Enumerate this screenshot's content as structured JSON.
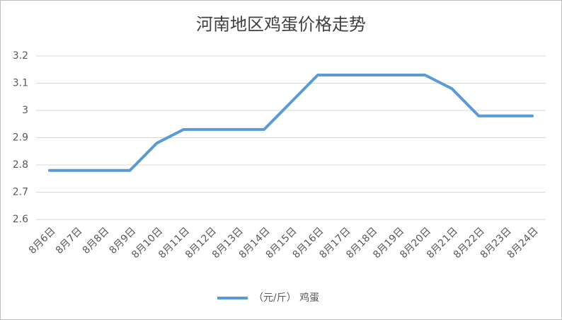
{
  "chart_data": {
    "type": "line",
    "title": "河南地区鸡蛋价格走势",
    "categories": [
      "8月6日",
      "8月7日",
      "8月8日",
      "8月9日",
      "8月10日",
      "8月11日",
      "8月12日",
      "8月13日",
      "8月14日",
      "8月15日",
      "8月16日",
      "8月17日",
      "8月18日",
      "8月19日",
      "8月20日",
      "8月21日",
      "8月22日",
      "8月23日",
      "8月24日"
    ],
    "series": [
      {
        "name": "（元/斤） 鸡蛋",
        "color": "#5b9bd5",
        "values": [
          2.78,
          2.78,
          2.78,
          2.78,
          2.88,
          2.93,
          2.93,
          2.93,
          2.93,
          3.03,
          3.13,
          3.13,
          3.13,
          3.13,
          3.13,
          3.08,
          2.98,
          2.98,
          2.98
        ]
      }
    ],
    "ylim": [
      2.6,
      3.2
    ],
    "yticks": [
      2.6,
      2.7,
      2.8,
      2.9,
      3,
      3.1,
      3.2
    ],
    "grid": true,
    "legend": "bottom"
  }
}
